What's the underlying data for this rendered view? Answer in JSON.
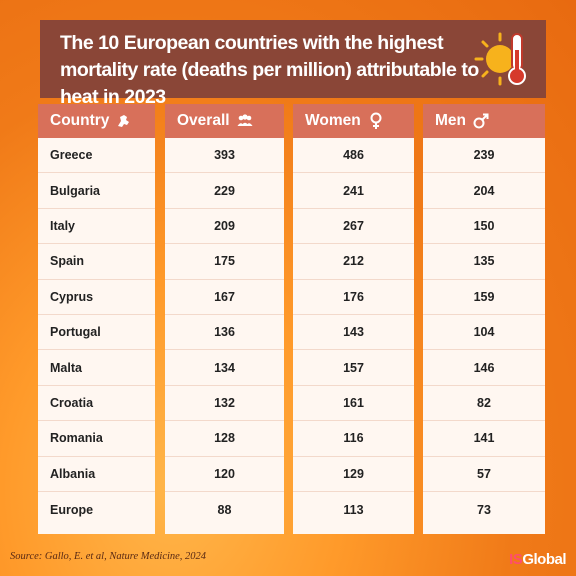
{
  "title": "The 10 European countries with the highest mortality rate (deaths per million) attributable to heat in 2023",
  "headers": {
    "country": "Country",
    "overall": "Overall",
    "women": "Women",
    "men": "Men"
  },
  "icons": {
    "title": "sun-thermometer-icon",
    "country": "europe-map-icon",
    "overall": "people-group-icon",
    "women": "female-symbol-icon",
    "men": "male-symbol-icon"
  },
  "colors": {
    "title_bg": "#8a4637",
    "header_bg": "#d8705a",
    "panel_bg": "#fff7f1"
  },
  "chart_data": {
    "type": "table",
    "title": "The 10 European countries with the highest mortality rate (deaths per million) attributable to heat in 2023",
    "columns": [
      "Country",
      "Overall",
      "Women",
      "Men"
    ],
    "rows": [
      {
        "country": "Greece",
        "overall": "393",
        "women": "486",
        "men": "239"
      },
      {
        "country": "Bulgaria",
        "overall": "229",
        "women": "241",
        "men": "204"
      },
      {
        "country": "Italy",
        "overall": "209",
        "women": "267",
        "men": "150"
      },
      {
        "country": "Spain",
        "overall": "175",
        "women": "212",
        "men": "135"
      },
      {
        "country": "Cyprus",
        "overall": "167",
        "women": "176",
        "men": "159"
      },
      {
        "country": "Portugal",
        "overall": "136",
        "women": "143",
        "men": "104"
      },
      {
        "country": "Malta",
        "overall": "134",
        "women": "157",
        "men": "146"
      },
      {
        "country": "Croatia",
        "overall": "132",
        "women": "161",
        "men": "82"
      },
      {
        "country": "Romania",
        "overall": "128",
        "women": "116",
        "men": "141"
      },
      {
        "country": "Albania",
        "overall": "120",
        "women": "129",
        "men": "57"
      },
      {
        "country": "Europe",
        "overall": "88",
        "women": "113",
        "men": "73"
      }
    ]
  },
  "source": "Source: Gallo, E. et al, Nature Medicine, 2024",
  "logo": {
    "part1": "IS",
    "part2": "Global"
  }
}
